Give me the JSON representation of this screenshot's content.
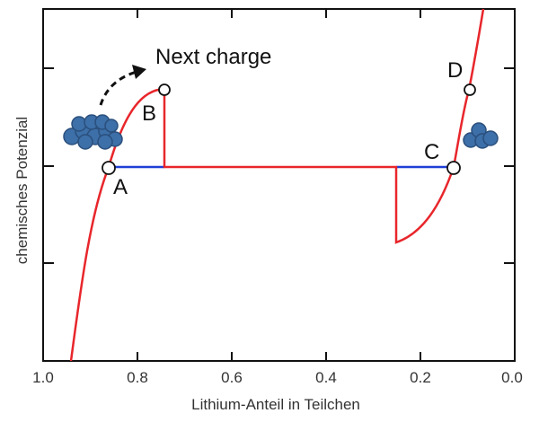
{
  "chart_data": {
    "type": "line",
    "xlabel": "Lithium-Anteil in Teilchen",
    "ylabel": "chemisches Potenzial",
    "x_ticks": [
      "1.0",
      "0.8",
      "0.6",
      "0.4",
      "0.2",
      "0.0"
    ],
    "points": [
      {
        "label": "A"
      },
      {
        "label": "B"
      },
      {
        "label": "C"
      },
      {
        "label": "D"
      }
    ],
    "annotation": "Next charge",
    "colors": {
      "curve": "#e8262b",
      "plateau": "#1f3fd6",
      "particle": "#3d6fa8",
      "particle_edge": "#2a4f7c",
      "axis": "#111111"
    }
  }
}
